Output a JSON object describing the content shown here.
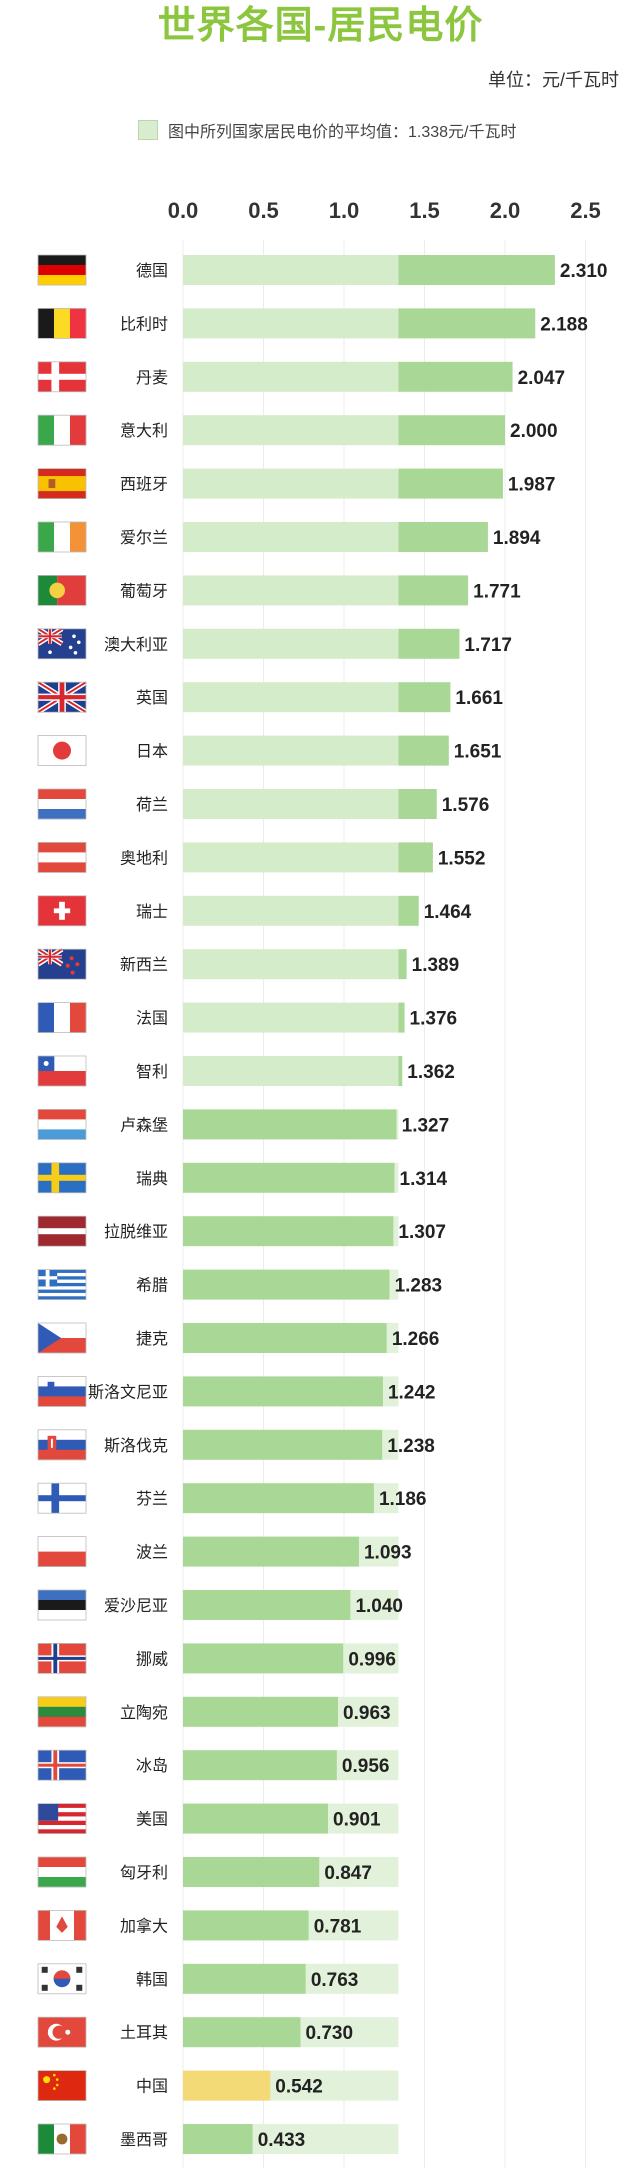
{
  "title": "世界各国-居民电价",
  "unit": "单位：元/千瓦时",
  "legend": "图中所列国家居民电价的平均值：1.338元/千瓦时",
  "colors": {
    "title": "#8cc63f",
    "bar": "#a8d796",
    "bar_light": "#d5ecca",
    "highlight": "#f3da76",
    "avg_band": "#e2f1da"
  },
  "chart_data": {
    "type": "bar",
    "orientation": "horizontal",
    "average": 1.338,
    "xlim": [
      0,
      2.5
    ],
    "ticks": [
      0.0,
      0.5,
      1.0,
      1.5,
      2.0,
      2.5
    ],
    "tick_labels": [
      "0.0",
      "0.5",
      "1.0",
      "1.5",
      "2.0",
      "2.5"
    ],
    "highlight_category": "中国",
    "categories": [
      "德国",
      "比利时",
      "丹麦",
      "意大利",
      "西班牙",
      "爱尔兰",
      "葡萄牙",
      "澳大利亚",
      "英国",
      "日本",
      "荷兰",
      "奥地利",
      "瑞士",
      "新西兰",
      "法国",
      "智利",
      "卢森堡",
      "瑞典",
      "拉脱维亚",
      "希腊",
      "捷克",
      "斯洛文尼亚",
      "斯洛伐克",
      "芬兰",
      "波兰",
      "爱沙尼亚",
      "挪威",
      "立陶宛",
      "冰岛",
      "美国",
      "匈牙利",
      "加拿大",
      "韩国",
      "土耳其",
      "中国",
      "墨西哥"
    ],
    "values": [
      2.31,
      2.188,
      2.047,
      2.0,
      1.987,
      1.894,
      1.771,
      1.717,
      1.661,
      1.651,
      1.576,
      1.552,
      1.464,
      1.389,
      1.376,
      1.362,
      1.327,
      1.314,
      1.307,
      1.283,
      1.266,
      1.242,
      1.238,
      1.186,
      1.093,
      1.04,
      0.996,
      0.963,
      0.956,
      0.901,
      0.847,
      0.781,
      0.763,
      0.73,
      0.542,
      0.433
    ],
    "value_labels": [
      "2.310",
      "2.188",
      "2.047",
      "2.000",
      "1.987",
      "1.894",
      "1.771",
      "1.717",
      "1.661",
      "1.651",
      "1.576",
      "1.552",
      "1.464",
      "1.389",
      "1.376",
      "1.362",
      "1.327",
      "1.314",
      "1.307",
      "1.283",
      "1.266",
      "1.242",
      "1.238",
      "1.186",
      "1.093",
      "1.040",
      "0.996",
      "0.963",
      "0.956",
      "0.901",
      "0.847",
      "0.781",
      "0.763",
      "0.730",
      "0.542",
      "0.433"
    ]
  },
  "flag_icons": [
    "germany-flag-icon",
    "belgium-flag-icon",
    "denmark-flag-icon",
    "italy-flag-icon",
    "spain-flag-icon",
    "ireland-flag-icon",
    "portugal-flag-icon",
    "australia-flag-icon",
    "uk-flag-icon",
    "japan-flag-icon",
    "netherlands-flag-icon",
    "austria-flag-icon",
    "switzerland-flag-icon",
    "new-zealand-flag-icon",
    "france-flag-icon",
    "chile-flag-icon",
    "luxembourg-flag-icon",
    "sweden-flag-icon",
    "latvia-flag-icon",
    "greece-flag-icon",
    "czech-flag-icon",
    "slovenia-flag-icon",
    "slovakia-flag-icon",
    "finland-flag-icon",
    "poland-flag-icon",
    "estonia-flag-icon",
    "norway-flag-icon",
    "lithuania-flag-icon",
    "iceland-flag-icon",
    "usa-flag-icon",
    "hungary-flag-icon",
    "canada-flag-icon",
    "korea-flag-icon",
    "turkey-flag-icon",
    "china-flag-icon",
    "mexico-flag-icon"
  ]
}
